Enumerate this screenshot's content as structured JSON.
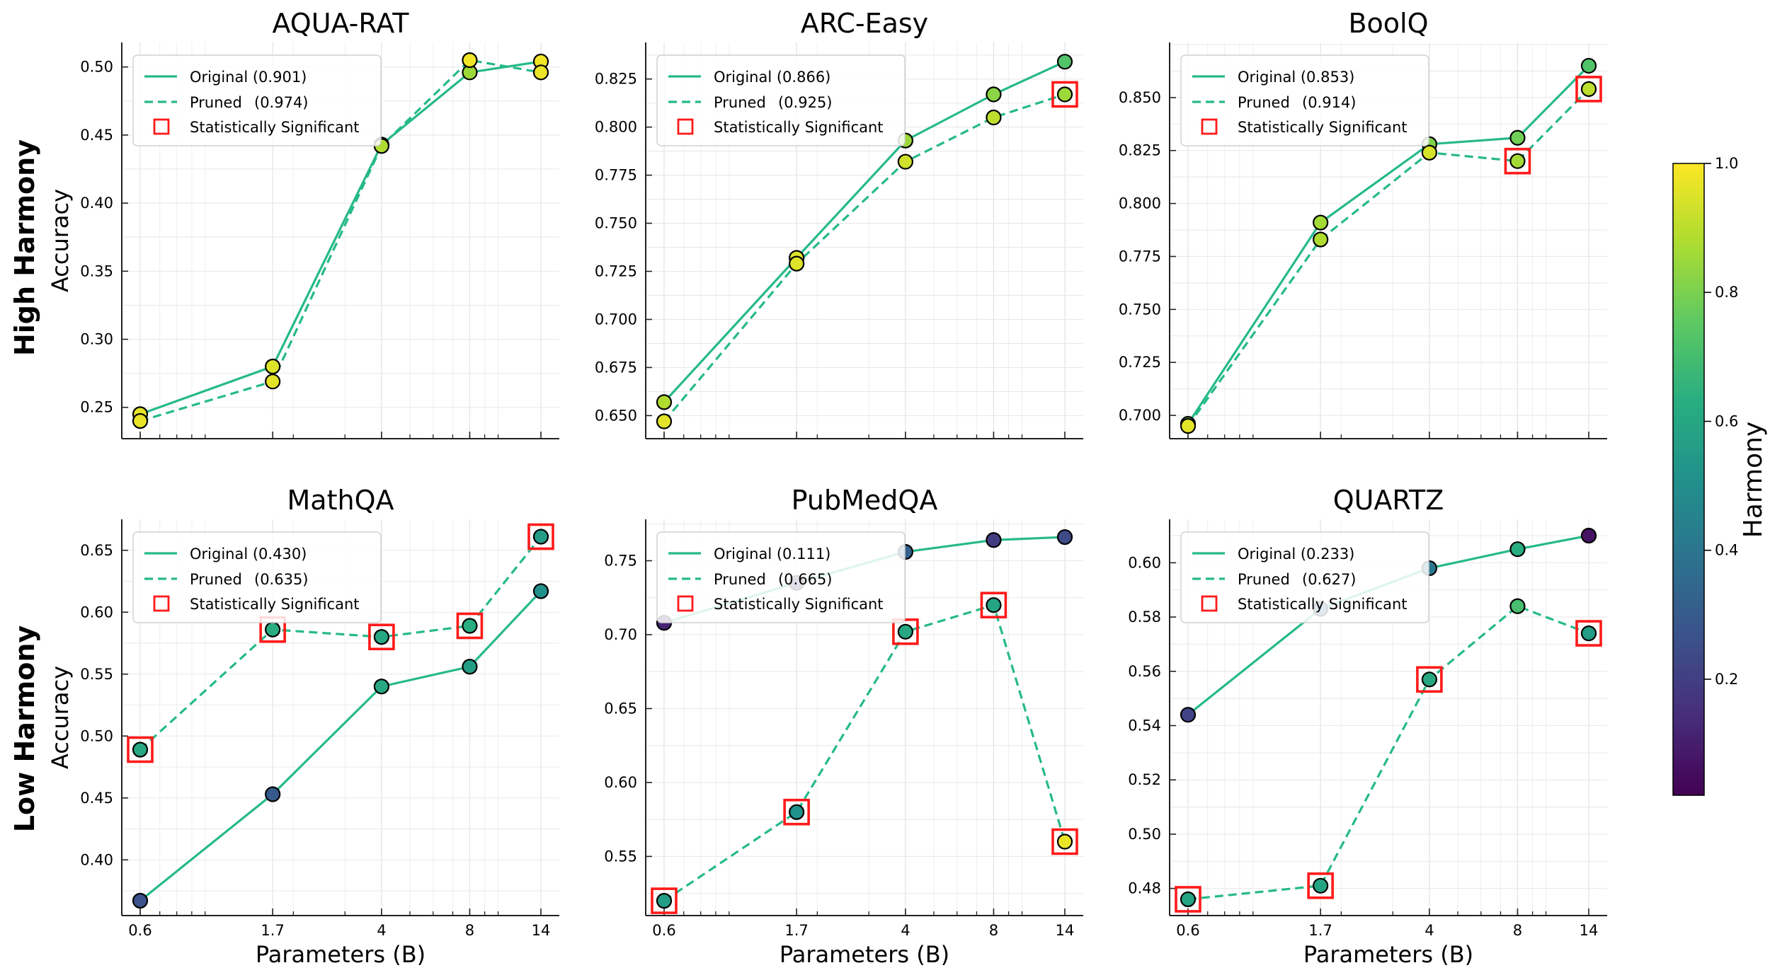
{
  "figure": {
    "row_labels": [
      "High Harmony",
      "Low Harmony"
    ],
    "colorbar": {
      "label": "Harmony",
      "ticks": [
        "0.2",
        "0.4",
        "0.6",
        "0.8",
        "1.0"
      ],
      "tick_values": [
        0.2,
        0.4,
        0.6,
        0.8,
        1.0
      ],
      "range": [
        0.02,
        1.0
      ],
      "colormap": "viridis"
    },
    "legend_labels": {
      "original": "Original",
      "pruned": "Pruned",
      "significant": "Statistically Significant"
    },
    "colors": {
      "line": "#26b98a",
      "significant_box": "#ff1a1a",
      "marker_edge": "#000000"
    }
  },
  "chart_data": [
    {
      "type": "line",
      "title": "AQUA-RAT",
      "ylabel": "Accuracy",
      "xlabel": "",
      "x": [
        0.6,
        1.7,
        4,
        8,
        14
      ],
      "x_tick_labels": [
        "0.6",
        "1.7",
        "4",
        "8",
        "14"
      ],
      "x_scale": "log",
      "ylim": [
        0.227,
        0.518
      ],
      "yticks": [
        "0.25",
        "0.30",
        "0.35",
        "0.40",
        "0.45",
        "0.50"
      ],
      "ytick_values": [
        0.25,
        0.3,
        0.35,
        0.4,
        0.45,
        0.5
      ],
      "grid": true,
      "legend": "top-left",
      "series": [
        {
          "name": "Original",
          "legend_score": "(0.901)",
          "style": "solid",
          "values": [
            0.245,
            0.28,
            0.443,
            0.496,
            0.504
          ],
          "harmony": [
            0.96,
            0.95,
            0.86,
            0.85,
            0.98
          ],
          "significant": [
            false,
            false,
            false,
            false,
            false
          ]
        },
        {
          "name": "Pruned",
          "legend_score": "(0.974)",
          "style": "dashed",
          "values": [
            0.24,
            0.269,
            0.442,
            0.505,
            0.496
          ],
          "harmony": [
            0.97,
            0.96,
            0.88,
            0.98,
            0.97
          ],
          "significant": [
            false,
            false,
            false,
            false,
            false
          ]
        }
      ]
    },
    {
      "type": "line",
      "title": "ARC-Easy",
      "ylabel": "",
      "xlabel": "",
      "x": [
        0.6,
        1.7,
        4,
        8,
        14
      ],
      "x_tick_labels": [
        "0.6",
        "1.7",
        "4",
        "8",
        "14"
      ],
      "x_scale": "log",
      "ylim": [
        0.638,
        0.844
      ],
      "yticks": [
        "0.650",
        "0.675",
        "0.700",
        "0.725",
        "0.750",
        "0.775",
        "0.800",
        "0.825"
      ],
      "ytick_values": [
        0.65,
        0.675,
        0.7,
        0.725,
        0.75,
        0.775,
        0.8,
        0.825
      ],
      "grid": true,
      "legend": "top-left",
      "series": [
        {
          "name": "Original",
          "legend_score": "(0.866)",
          "style": "solid",
          "values": [
            0.657,
            0.732,
            0.793,
            0.817,
            0.834
          ],
          "harmony": [
            0.88,
            0.95,
            0.85,
            0.82,
            0.72
          ],
          "significant": [
            false,
            false,
            false,
            false,
            false
          ]
        },
        {
          "name": "Pruned",
          "legend_score": "(0.925)",
          "style": "dashed",
          "values": [
            0.647,
            0.729,
            0.782,
            0.805,
            0.817
          ],
          "harmony": [
            0.96,
            0.95,
            0.93,
            0.9,
            0.85
          ],
          "significant": [
            false,
            false,
            false,
            false,
            true
          ]
        }
      ]
    },
    {
      "type": "line",
      "title": "BoolQ",
      "ylabel": "",
      "xlabel": "",
      "x": [
        0.6,
        1.7,
        4,
        8,
        14
      ],
      "x_tick_labels": [
        "0.6",
        "1.7",
        "4",
        "8",
        "14"
      ],
      "x_scale": "log",
      "ylim": [
        0.689,
        0.876
      ],
      "yticks": [
        "0.700",
        "0.725",
        "0.750",
        "0.775",
        "0.800",
        "0.825",
        "0.850"
      ],
      "ytick_values": [
        0.7,
        0.725,
        0.75,
        0.775,
        0.8,
        0.825,
        0.85
      ],
      "grid": true,
      "legend": "top-left",
      "series": [
        {
          "name": "Original",
          "legend_score": "(0.853)",
          "style": "solid",
          "values": [
            0.696,
            0.791,
            0.828,
            0.831,
            0.865
          ],
          "harmony": [
            0.8,
            0.86,
            0.8,
            0.78,
            0.72
          ],
          "significant": [
            false,
            false,
            false,
            false,
            false
          ]
        },
        {
          "name": "Pruned",
          "legend_score": "(0.914)",
          "style": "dashed",
          "values": [
            0.695,
            0.783,
            0.824,
            0.82,
            0.854
          ],
          "harmony": [
            0.96,
            0.88,
            0.94,
            0.86,
            0.9
          ],
          "significant": [
            false,
            false,
            false,
            true,
            true
          ]
        }
      ]
    },
    {
      "type": "line",
      "title": "MathQA",
      "ylabel": "Accuracy",
      "xlabel": "Parameters (B)",
      "x": [
        0.6,
        1.7,
        4,
        8,
        14
      ],
      "x_tick_labels": [
        "0.6",
        "1.7",
        "4",
        "8",
        "14"
      ],
      "x_scale": "log",
      "ylim": [
        0.355,
        0.675
      ],
      "yticks": [
        "0.40",
        "0.45",
        "0.50",
        "0.55",
        "0.60",
        "0.65"
      ],
      "ytick_values": [
        0.4,
        0.45,
        0.5,
        0.55,
        0.6,
        0.65
      ],
      "grid": true,
      "legend": "top-left",
      "series": [
        {
          "name": "Original",
          "legend_score": "(0.430)",
          "style": "solid",
          "values": [
            0.367,
            0.453,
            0.54,
            0.556,
            0.617
          ],
          "harmony": [
            0.25,
            0.28,
            0.6,
            0.55,
            0.5
          ],
          "significant": [
            false,
            false,
            false,
            false,
            false
          ]
        },
        {
          "name": "Pruned",
          "legend_score": "(0.635)",
          "style": "dashed",
          "values": [
            0.489,
            0.586,
            0.58,
            0.589,
            0.661
          ],
          "harmony": [
            0.6,
            0.62,
            0.6,
            0.62,
            0.55
          ],
          "significant": [
            true,
            true,
            true,
            true,
            true
          ]
        }
      ]
    },
    {
      "type": "line",
      "title": "PubMedQA",
      "ylabel": "",
      "xlabel": "Parameters (B)",
      "x": [
        0.6,
        1.7,
        4,
        8,
        14
      ],
      "x_tick_labels": [
        "0.6",
        "1.7",
        "4",
        "8",
        "14"
      ],
      "x_scale": "log",
      "ylim": [
        0.51,
        0.778
      ],
      "yticks": [
        "0.55",
        "0.60",
        "0.65",
        "0.70",
        "0.75"
      ],
      "ytick_values": [
        0.55,
        0.6,
        0.65,
        0.7,
        0.75
      ],
      "grid": true,
      "legend": "top-left",
      "series": [
        {
          "name": "Original",
          "legend_score": "(0.111)",
          "style": "solid",
          "values": [
            0.708,
            0.735,
            0.756,
            0.764,
            0.766
          ],
          "harmony": [
            0.1,
            0.12,
            0.3,
            0.18,
            0.22
          ],
          "significant": [
            false,
            false,
            false,
            false,
            false
          ]
        },
        {
          "name": "Pruned",
          "legend_score": "(0.665)",
          "style": "dashed",
          "values": [
            0.52,
            0.58,
            0.702,
            0.72,
            0.56
          ],
          "harmony": [
            0.55,
            0.5,
            0.6,
            0.58,
            0.97
          ],
          "significant": [
            true,
            true,
            true,
            true,
            true
          ]
        }
      ]
    },
    {
      "type": "line",
      "title": "QUARTZ",
      "ylabel": "",
      "xlabel": "Parameters (B)",
      "x": [
        0.6,
        1.7,
        4,
        8,
        14
      ],
      "x_tick_labels": [
        "0.6",
        "1.7",
        "4",
        "8",
        "14"
      ],
      "x_scale": "log",
      "ylim": [
        0.47,
        0.616
      ],
      "yticks": [
        "0.48",
        "0.50",
        "0.52",
        "0.54",
        "0.56",
        "0.58",
        "0.60"
      ],
      "ytick_values": [
        0.48,
        0.5,
        0.52,
        0.54,
        0.56,
        0.58,
        0.6
      ],
      "grid": true,
      "legend": "top-left",
      "series": [
        {
          "name": "Original",
          "legend_score": "(0.233)",
          "style": "solid",
          "values": [
            0.544,
            0.583,
            0.598,
            0.605,
            0.61
          ],
          "harmony": [
            0.2,
            0.3,
            0.4,
            0.62,
            0.05
          ],
          "significant": [
            false,
            false,
            false,
            false,
            false
          ]
        },
        {
          "name": "Pruned",
          "legend_score": "(0.627)",
          "style": "dashed",
          "values": [
            0.476,
            0.481,
            0.557,
            0.584,
            0.574
          ],
          "harmony": [
            0.58,
            0.58,
            0.6,
            0.7,
            0.55
          ],
          "significant": [
            true,
            true,
            true,
            false,
            true
          ]
        }
      ]
    }
  ]
}
